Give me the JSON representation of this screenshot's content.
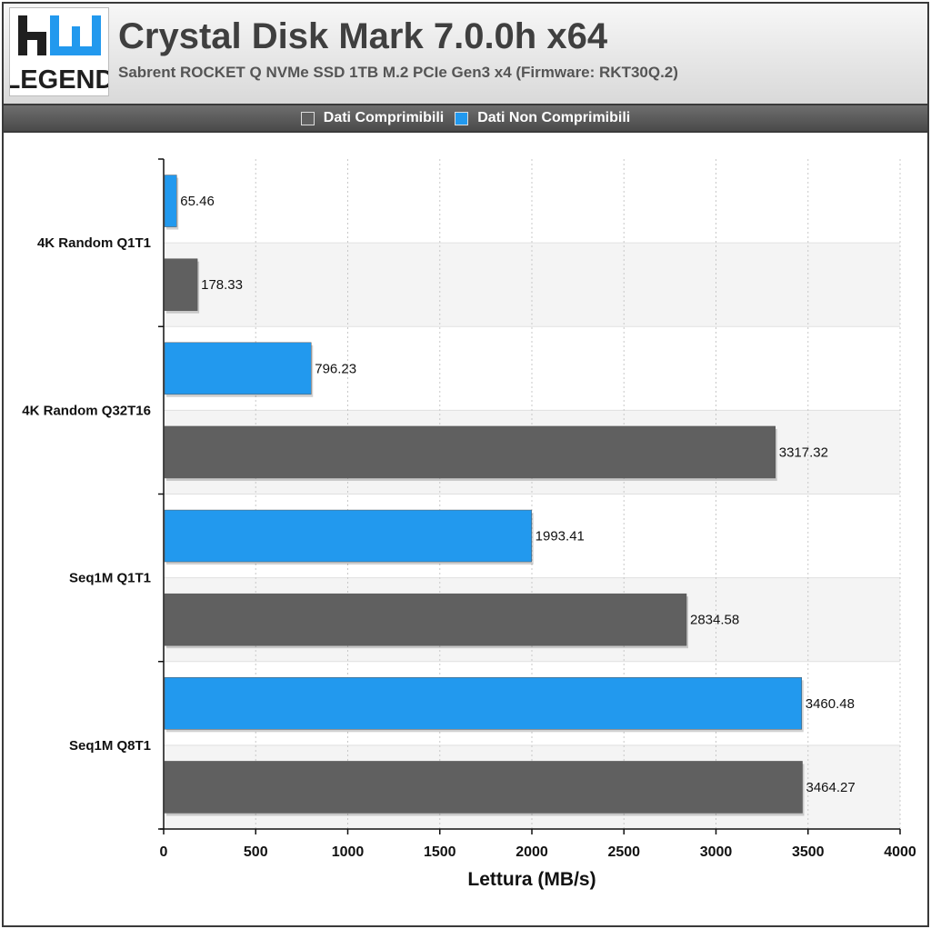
{
  "header": {
    "title": "Crystal Disk Mark 7.0.0h x64",
    "subtitle": "Sabrent ROCKET Q NVMe SSD 1TB M.2 PCIe Gen3 x4 (Firmware: RKT30Q.2)",
    "logo_text": "HW LEGEND"
  },
  "colors": {
    "compressible": "#606060",
    "non_compressible": "#2299ee"
  },
  "chart_data": {
    "type": "bar",
    "orientation": "horizontal",
    "title": "Crystal Disk Mark 7.0.0h x64",
    "subtitle": "Sabrent ROCKET Q NVMe SSD 1TB M.2 PCIe Gen3 x4 (Firmware: RKT30Q.2)",
    "categories": [
      "4K Random Q1T1",
      "4K Random Q32T16",
      "Seq1M Q1T1",
      "Seq1M Q8T1"
    ],
    "series": [
      {
        "name": "Dati Non Comprimibili",
        "color": "#2299ee",
        "values": [
          65.46,
          796.23,
          1993.41,
          3460.48
        ],
        "labels": [
          "65.46",
          "796.23",
          "1993.41",
          "3460.48"
        ]
      },
      {
        "name": "Dati Comprimibili",
        "color": "#606060",
        "values": [
          178.33,
          3317.32,
          2834.58,
          3464.27
        ],
        "labels": [
          "178.33",
          "3317.32",
          "2834.58",
          "3464.27"
        ]
      }
    ],
    "legend": [
      "Dati Comprimibili",
      "Dati Non Comprimibili"
    ],
    "legend_position": "top",
    "xlabel": "Lettura (MB/s)",
    "ylabel": "",
    "xlim": [
      0,
      4000
    ],
    "xticks": [
      0,
      500,
      1000,
      1500,
      2000,
      2500,
      3000,
      3500,
      4000
    ],
    "xtick_labels": [
      "0",
      "500",
      "1000",
      "1500",
      "2000",
      "2500",
      "3000",
      "3500",
      "4000"
    ],
    "grid": true
  }
}
